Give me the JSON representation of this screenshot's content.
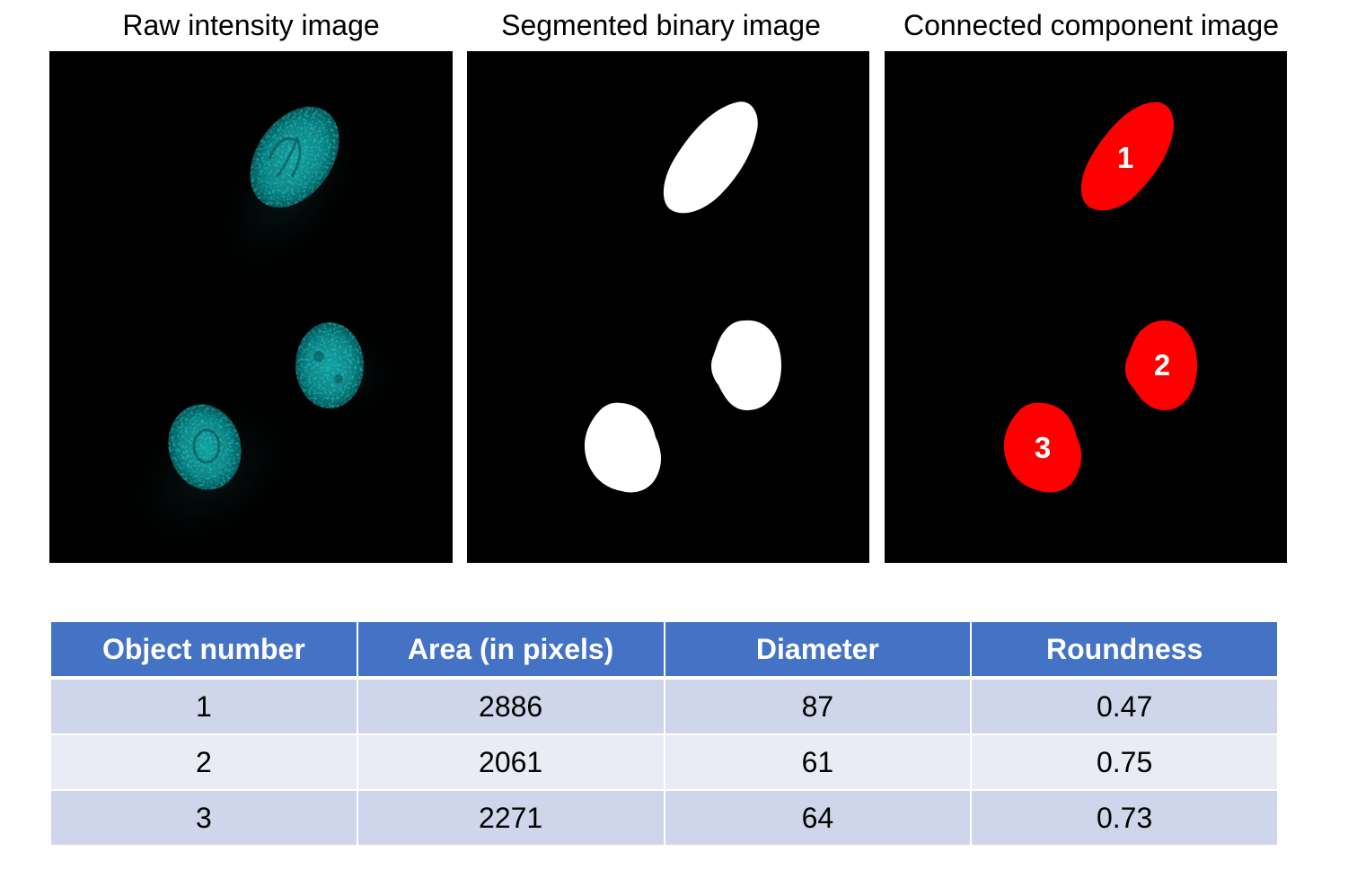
{
  "panels": [
    {
      "id": "raw",
      "title": "Raw intensity image"
    },
    {
      "id": "binary",
      "title": "Segmented binary image"
    },
    {
      "id": "components",
      "title": "Connected component image"
    }
  ],
  "colors": {
    "raw_nucleus": "#1aa7a7",
    "binary_object": "#ffffff",
    "component_object": "#ff0000",
    "table_header": "#4472c4",
    "row_odd": "#cfd5ea",
    "row_even": "#e9ebf5"
  },
  "component_labels": [
    "1",
    "2",
    "3"
  ],
  "table": {
    "headers": [
      "Object number",
      "Area (in pixels)",
      "Diameter",
      "Roundness"
    ],
    "rows": [
      [
        "1",
        "2886",
        "87",
        "0.47"
      ],
      [
        "2",
        "2061",
        "61",
        "0.75"
      ],
      [
        "3",
        "2271",
        "64",
        "0.73"
      ]
    ]
  }
}
